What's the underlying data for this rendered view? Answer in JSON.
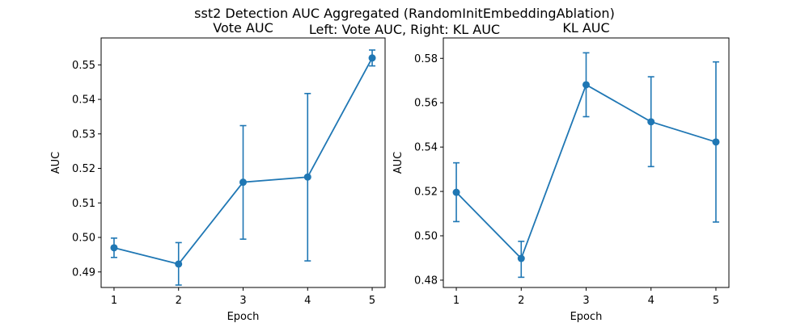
{
  "suptitle_line1": "sst2 Detection AUC Aggregated (RandomInitEmbeddingAblation)",
  "suptitle_line2": "Left: Vote AUC, Right: KL AUC",
  "chart_data": [
    {
      "type": "line",
      "title": "Vote AUC",
      "xlabel": "Epoch",
      "ylabel": "AUC",
      "x": [
        1,
        2,
        3,
        4,
        5
      ],
      "xticks": [
        "1",
        "2",
        "3",
        "4",
        "5"
      ],
      "xlim": [
        0.8,
        5.2
      ],
      "ylim": [
        0.4855,
        0.5578
      ],
      "yticks": [
        "0.49",
        "0.50",
        "0.51",
        "0.52",
        "0.53",
        "0.54",
        "0.55"
      ],
      "yticks_values": [
        0.49,
        0.5,
        0.51,
        0.52,
        0.53,
        0.54,
        0.55
      ],
      "series": [
        {
          "values": [
            0.497,
            0.4923,
            0.516,
            0.5175,
            0.552
          ],
          "err_low": [
            0.4942,
            0.4862,
            0.4995,
            0.4932,
            0.5497
          ],
          "err_high": [
            0.4998,
            0.4985,
            0.5324,
            0.5417,
            0.5543
          ],
          "color": "#1f77b4"
        }
      ],
      "grid": false
    },
    {
      "type": "line",
      "title": "KL AUC",
      "xlabel": "Epoch",
      "ylabel": "AUC",
      "x": [
        1,
        2,
        3,
        4,
        5
      ],
      "xticks": [
        "1",
        "2",
        "3",
        "4",
        "5"
      ],
      "xlim": [
        0.8,
        5.2
      ],
      "ylim": [
        0.4767,
        0.5892
      ],
      "yticks": [
        "0.48",
        "0.50",
        "0.52",
        "0.54",
        "0.56",
        "0.58"
      ],
      "yticks_values": [
        0.48,
        0.5,
        0.52,
        0.54,
        0.56,
        0.58
      ],
      "series": [
        {
          "values": [
            0.5196,
            0.4898,
            0.5681,
            0.5514,
            0.5423
          ],
          "err_low": [
            0.5064,
            0.4813,
            0.5537,
            0.5312,
            0.5062
          ],
          "err_high": [
            0.5329,
            0.4975,
            0.5825,
            0.5717,
            0.5784
          ],
          "color": "#1f77b4"
        }
      ],
      "grid": false
    }
  ]
}
